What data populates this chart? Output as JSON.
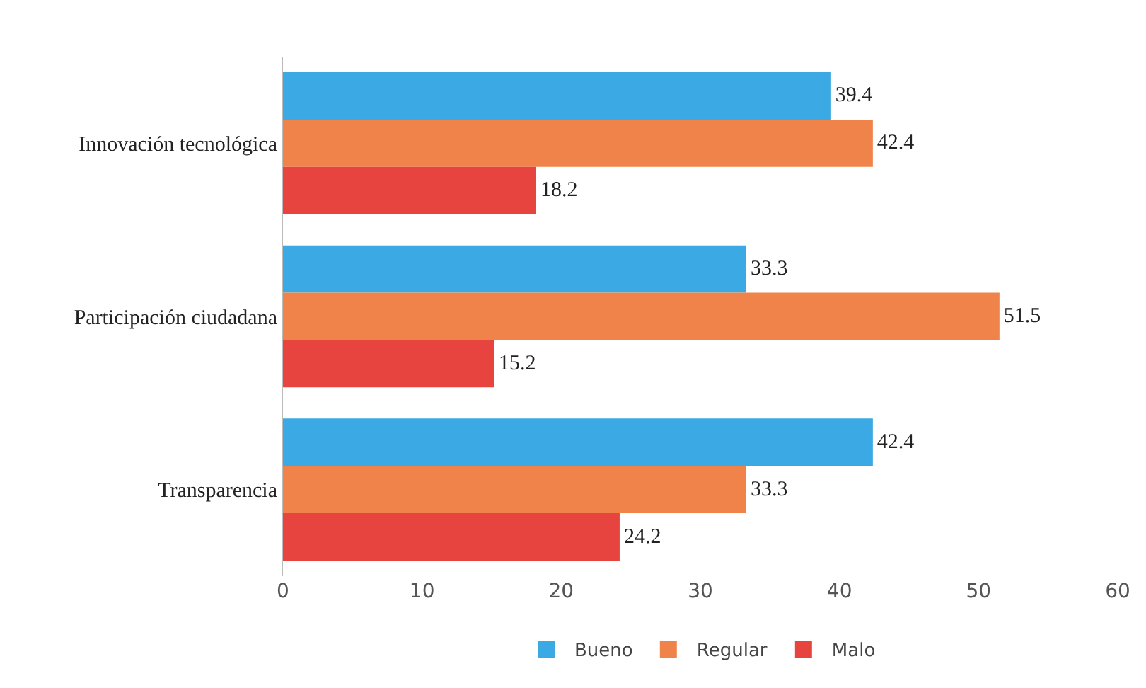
{
  "chart_data": {
    "type": "bar",
    "orientation": "horizontal",
    "categories": [
      "Innovación tecnológica",
      "Participación ciudadana",
      "Transparencia"
    ],
    "series": [
      {
        "name": "Bueno",
        "color": "#3aa9e4",
        "values": [
          39.4,
          33.3,
          42.4
        ]
      },
      {
        "name": "Regular",
        "color": "#f0834a",
        "values": [
          42.4,
          51.5,
          33.3
        ]
      },
      {
        "name": "Malo",
        "color": "#e8443f",
        "values": [
          18.2,
          15.2,
          24.2
        ]
      }
    ],
    "xlim": [
      0,
      60
    ],
    "xticks": [
      0,
      10,
      20,
      30,
      40,
      50,
      60
    ],
    "grid": false,
    "legend": "bottom",
    "data_labels": true
  }
}
